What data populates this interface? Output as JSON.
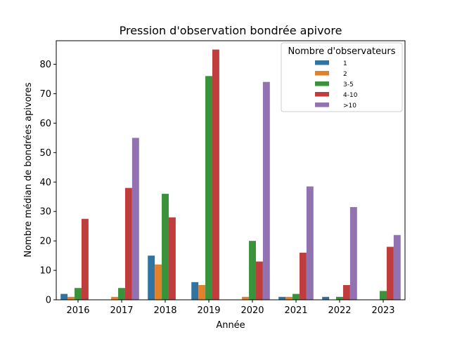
{
  "chart_data": {
    "type": "bar",
    "title": "Pression d'observation bondrée apivore",
    "xlabel": "Année",
    "ylabel": "Nombre médian de bondrées apivores",
    "ylim": [
      0,
      88
    ],
    "yticks": [
      0,
      10,
      20,
      30,
      40,
      50,
      60,
      70,
      80
    ],
    "grid": false,
    "categories": [
      "2016",
      "2017",
      "2018",
      "2019",
      "2020",
      "2021",
      "2022",
      "2023"
    ],
    "legend": {
      "title": "Nombre d'observateurs",
      "placement": "top-right"
    },
    "series": [
      {
        "name": "1",
        "color": "#3274a1",
        "values": [
          2,
          0,
          15,
          6,
          0,
          1,
          1,
          0
        ]
      },
      {
        "name": "2",
        "color": "#e1812c",
        "values": [
          1,
          1,
          12,
          5,
          1,
          1,
          0,
          0
        ]
      },
      {
        "name": "3-5",
        "color": "#3a923a",
        "values": [
          4,
          4,
          36,
          76,
          20,
          2,
          1,
          3
        ]
      },
      {
        "name": "4-10",
        "color": "#c03d3e",
        "values": [
          27.5,
          38,
          28,
          85,
          13,
          16,
          5,
          18
        ]
      },
      {
        "name": ">10",
        "color": "#9372b2",
        "values": [
          0,
          55,
          0,
          0,
          74,
          38.5,
          31.5,
          22
        ]
      }
    ]
  }
}
